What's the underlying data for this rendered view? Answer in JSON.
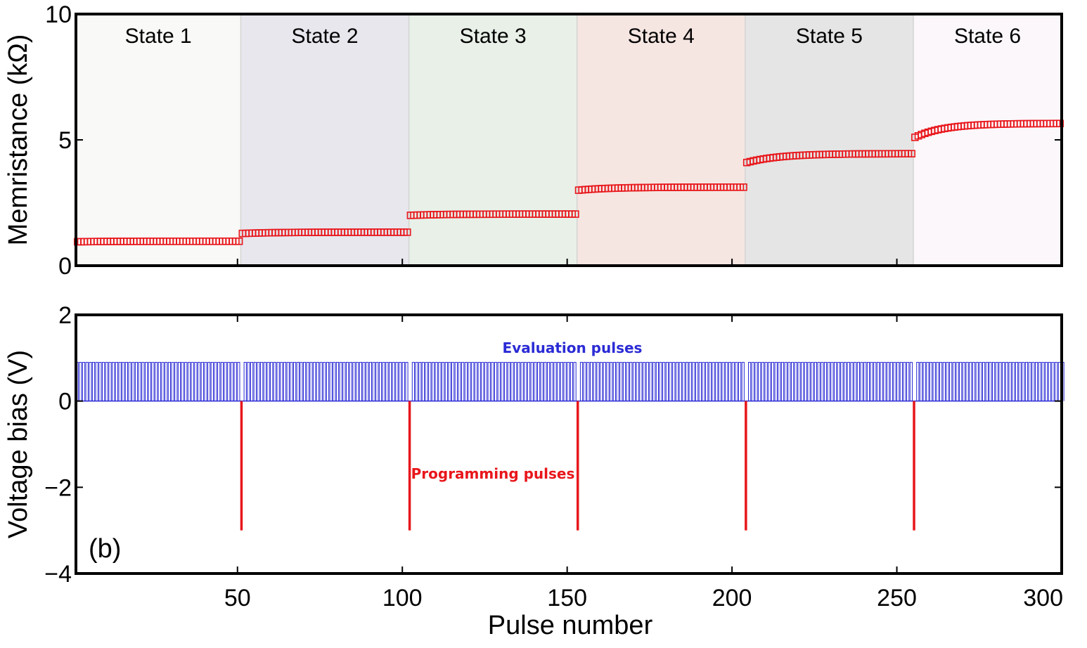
{
  "chart_data": [
    {
      "type": "scatter",
      "panel": "top",
      "ylabel": "Memristance (kΩ)",
      "xlim": [
        1,
        300
      ],
      "ylim": [
        0,
        10
      ],
      "yticks": [
        "0",
        "5",
        "10"
      ],
      "marker_color": "#e8161b",
      "states": [
        {
          "label": "State 1",
          "x_start": 1,
          "x_end": 51,
          "band_color": "#f9f9f7",
          "start_value": 0.95,
          "end_value": 0.97
        },
        {
          "label": "State 2",
          "x_start": 51,
          "x_end": 102,
          "band_color": "#e8e7ee",
          "start_value": 1.28,
          "end_value": 1.33
        },
        {
          "label": "State 3",
          "x_start": 102,
          "x_end": 153,
          "band_color": "#e8f0e8",
          "start_value": 2.0,
          "end_value": 2.05
        },
        {
          "label": "State 4",
          "x_start": 153,
          "x_end": 204,
          "band_color": "#f6e6e2",
          "start_value": 3.0,
          "end_value": 3.12
        },
        {
          "label": "State 5",
          "x_start": 204,
          "x_end": 255,
          "band_color": "#e5e5e5",
          "start_value": 4.1,
          "end_value": 4.45
        },
        {
          "label": "State 6",
          "x_start": 255,
          "x_end": 300,
          "band_color": "#fbf7fb",
          "start_value": 5.1,
          "end_value": 5.65
        }
      ]
    },
    {
      "type": "line",
      "panel": "bottom",
      "xlabel": "Pulse number",
      "ylabel": "Voltage bias (V)",
      "xlim": [
        1,
        300
      ],
      "ylim": [
        -4,
        2
      ],
      "xticks": [
        "50",
        "100",
        "150",
        "200",
        "250",
        "300"
      ],
      "yticks": [
        "−4",
        "−2",
        "0",
        "2"
      ],
      "panel_label": "(b)",
      "evaluation_pulses": {
        "label": "Evaluation pulses",
        "voltage": 0.9,
        "color": "#2b2bd6"
      },
      "programming_pulses": {
        "label": "Programming pulses",
        "voltage": -3,
        "at": [
          51,
          102,
          153,
          204,
          255
        ],
        "color": "#e8161b"
      }
    }
  ]
}
